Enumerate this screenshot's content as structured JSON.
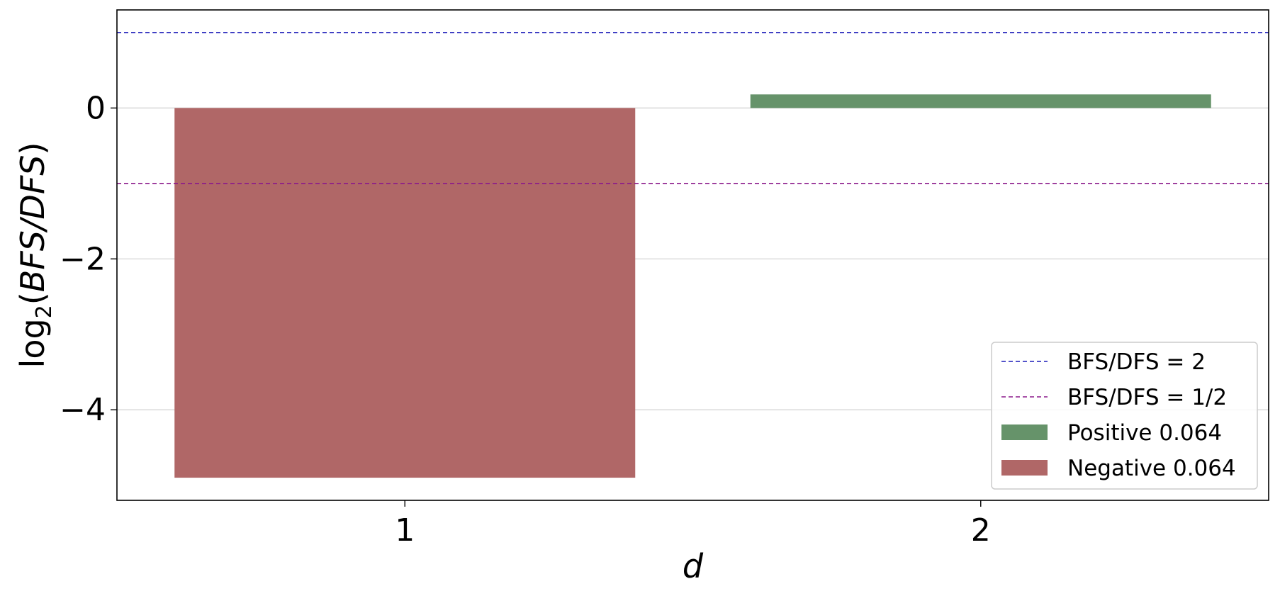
{
  "chart_data": {
    "type": "bar",
    "categories": [
      "1",
      "2"
    ],
    "series": [
      {
        "name": "Positive 0.064",
        "color": "#66936a",
        "values": [
          null,
          0.18
        ]
      },
      {
        "name": "Negative 0.064",
        "color": "#b06767",
        "values": [
          -4.9,
          null
        ]
      }
    ],
    "reference_lines": [
      {
        "label": "BFS/DFS = 2",
        "y": 1,
        "color": "#1a1ab8",
        "style": "dashed"
      },
      {
        "label": "BFS/DFS = 1/2",
        "y": -1,
        "color": "#8b1a8b",
        "style": "dashed"
      }
    ],
    "xlabel": "d",
    "ylabel_prefix": "log",
    "ylabel_subscript": "2",
    "ylabel_open": "(",
    "ylabel_italic": "BFS/DFS",
    "ylabel_close": ")",
    "ylim": [
      -5.2,
      1.3
    ],
    "yticks": [
      0,
      -2,
      -4
    ],
    "ytick_labels": [
      "0",
      "−2",
      "−4"
    ],
    "grid": "horizontal",
    "legend_position": "lower-right"
  }
}
